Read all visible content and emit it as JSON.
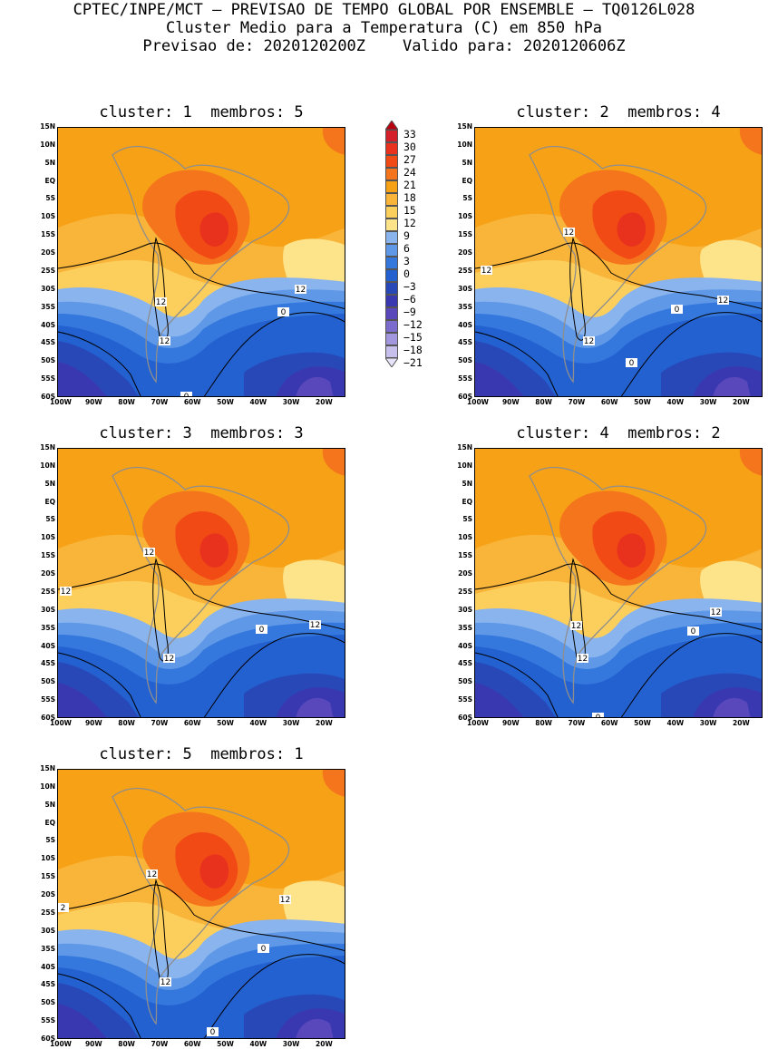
{
  "header": {
    "line1": "CPTEC/INPE/MCT – PREVISAO DE TEMPO GLOBAL POR ENSEMBLE – TQ0126L028",
    "line2": "Cluster Medio para a Temperatura (C) em 850 hPa",
    "line3": "Previsao de: 2020120200Z    Valido para: 2020120606Z"
  },
  "panels": [
    {
      "title": "cluster: 1  membros: 5",
      "contour_labels": [
        "12",
        "12",
        "12",
        "0",
        "0"
      ]
    },
    {
      "title": "cluster: 2  membros: 4",
      "contour_labels": [
        "12",
        "12",
        "12",
        "12",
        "0",
        "0"
      ]
    },
    {
      "title": "cluster: 3  membros: 3",
      "contour_labels": [
        "12",
        "12",
        "12",
        "12",
        "0"
      ]
    },
    {
      "title": "cluster: 4  membros: 2",
      "contour_labels": [
        "12",
        "12",
        "12",
        "0",
        "0"
      ]
    },
    {
      "title": "cluster: 5  membros: 1",
      "contour_labels": [
        "12",
        "2",
        "12",
        "12",
        "0",
        "0"
      ]
    }
  ],
  "axes": {
    "lat_labels": [
      "15N",
      "10N",
      "5N",
      "EQ",
      "5S",
      "10S",
      "15S",
      "20S",
      "25S",
      "30S",
      "35S",
      "40S",
      "45S",
      "50S",
      "55S",
      "60S"
    ],
    "lon_labels": [
      "100W",
      "90W",
      "80W",
      "70W",
      "60W",
      "50W",
      "40W",
      "30W",
      "20W"
    ]
  },
  "colorbar": {
    "labels": [
      "33",
      "30",
      "27",
      "24",
      "21",
      "18",
      "15",
      "12",
      "9",
      "6",
      "3",
      "0",
      "-3",
      "-6",
      "-9",
      "-12",
      "-15",
      "-18",
      "-21"
    ],
    "colors": [
      "#b8000f",
      "#d4202a",
      "#e8321e",
      "#f24a14",
      "#f4751c",
      "#f7a116",
      "#f9b43a",
      "#fccf5c",
      "#fde48a",
      "#8ab4ee",
      "#5f98e6",
      "#3478de",
      "#2360d0",
      "#2848b8",
      "#3a38b0",
      "#5848bc",
      "#7c6cce",
      "#a296dc",
      "#c8c0ec",
      "#e6e2f8"
    ]
  }
}
